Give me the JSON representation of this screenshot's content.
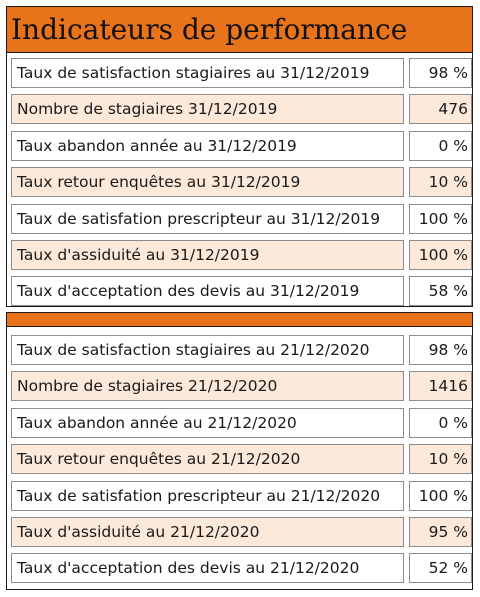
{
  "panels": [
    {
      "title": "Indicateurs de performance",
      "rows": [
        {
          "label": "Taux de satisfaction stagiaires au 31/12/2019",
          "value": "98 %"
        },
        {
          "label": "Nombre de stagiaires 31/12/2019",
          "value": "476"
        },
        {
          "label": "Taux abandon année au 31/12/2019",
          "value": "0 %"
        },
        {
          "label": "Taux retour enquêtes au 31/12/2019",
          "value": "10 %"
        },
        {
          "label": "Taux de satisfation prescripteur au 31/12/2019",
          "value": "100 %"
        },
        {
          "label": "Taux d'assiduité au 31/12/2019",
          "value": "100 %"
        },
        {
          "label": "Taux d'acceptation des devis au 31/12/2019",
          "value": "58 %"
        }
      ]
    },
    {
      "title": "",
      "rows": [
        {
          "label": "Taux de satisfaction stagiaires au 21/12/2020",
          "value": "98 %"
        },
        {
          "label": "Nombre de stagiaires 21/12/2020",
          "value": "1416"
        },
        {
          "label": "Taux abandon année au 21/12/2020",
          "value": "0 %"
        },
        {
          "label": "Taux retour enquêtes  au 21/12/2020",
          "value": "10 %"
        },
        {
          "label": "Taux de satisfation prescripteur au 21/12/2020",
          "value": "100 %"
        },
        {
          "label": "Taux d'assiduité au 21/12/2020",
          "value": "95 %"
        },
        {
          "label": "Taux d'acceptation des devis au 21/12/2020",
          "value": "52 %"
        }
      ]
    }
  ],
  "colors": {
    "header_orange": "#e8731a",
    "row_alt": "#fce9da",
    "border": "#1a1a1a"
  }
}
